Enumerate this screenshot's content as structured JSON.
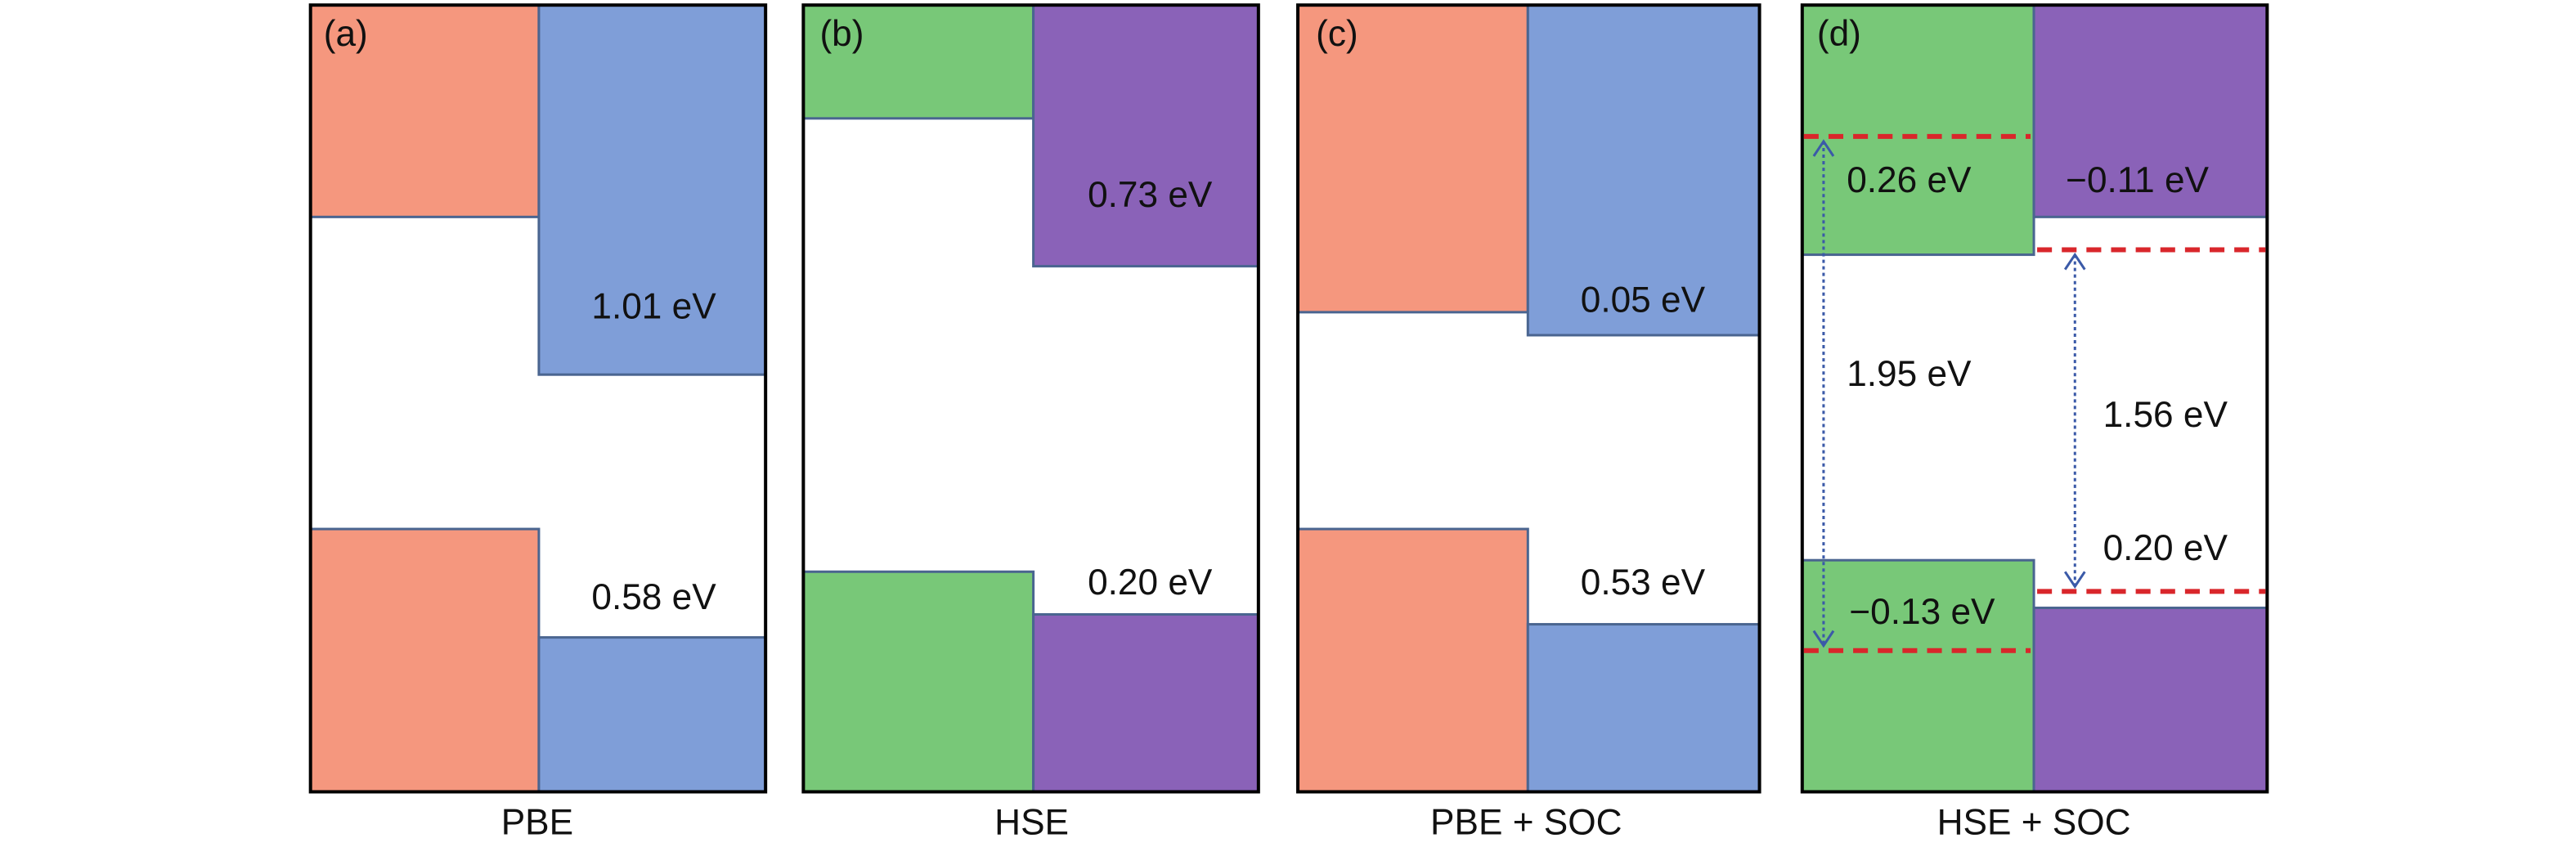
{
  "panels": [
    {
      "tag": "(a)",
      "caption": "PBE",
      "labels": [
        "1.01 eV",
        "0.58 eV"
      ]
    },
    {
      "tag": "(b)",
      "caption": "HSE",
      "labels": [
        "0.73 eV",
        "0.20 eV"
      ]
    },
    {
      "tag": "(c)",
      "caption": "PBE + SOC",
      "labels": [
        "0.05 eV",
        "0.53 eV"
      ]
    },
    {
      "tag": "(d)",
      "caption": "HSE + SOC",
      "labels": [
        "0.26 eV",
        "−0.11 eV",
        "1.95 eV",
        "1.56 eV",
        "0.20 eV",
        "−0.13 eV"
      ]
    }
  ]
}
